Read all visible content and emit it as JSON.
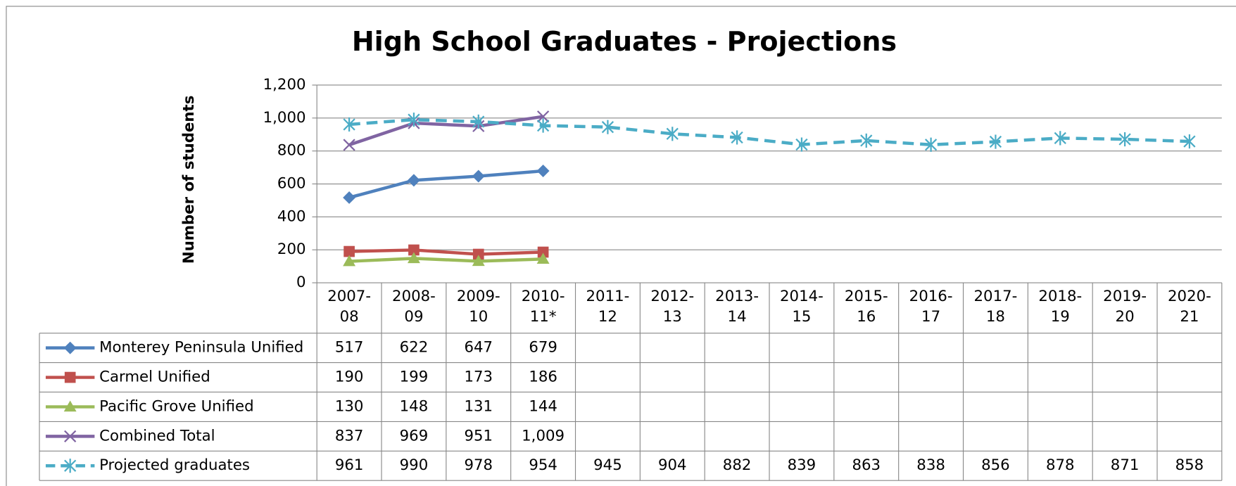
{
  "chart_data": {
    "type": "line",
    "title": "High School Graduates - Projections",
    "y_label": "Number of students",
    "categories": [
      "2007-08",
      "2008-09",
      "2009-10",
      "2010-11*",
      "2011-12",
      "2012-13",
      "2013-14",
      "2014-15",
      "2015-16",
      "2016-17",
      "2017-18",
      "2018-19",
      "2019-20",
      "2020-21"
    ],
    "ylim": [
      0,
      1200
    ],
    "yticks": [
      0,
      200,
      400,
      600,
      800,
      {
        "value": 1000,
        "label": "1,000"
      },
      {
        "value": 1200,
        "label": "1,200"
      }
    ],
    "grid": true,
    "legend": "bottom",
    "series": [
      {
        "name": "Monterey Peninsula Unified",
        "color": "#4f81bd",
        "marker": "diamond",
        "dash": false,
        "values": [
          517,
          622,
          647,
          679,
          null,
          null,
          null,
          null,
          null,
          null,
          null,
          null,
          null,
          null
        ]
      },
      {
        "name": "Carmel Unified",
        "color": "#c0504d",
        "marker": "square",
        "dash": false,
        "values": [
          190,
          199,
          173,
          186,
          null,
          null,
          null,
          null,
          null,
          null,
          null,
          null,
          null,
          null
        ]
      },
      {
        "name": "Pacific Grove Unified",
        "color": "#9bbb59",
        "marker": "triangle",
        "dash": false,
        "values": [
          130,
          148,
          131,
          144,
          null,
          null,
          null,
          null,
          null,
          null,
          null,
          null,
          null,
          null
        ]
      },
      {
        "name": "Combined Total",
        "color": "#8064a2",
        "marker": "x",
        "dash": false,
        "values": [
          837,
          969,
          951,
          1009,
          null,
          null,
          null,
          null,
          null,
          null,
          null,
          null,
          null,
          null
        ],
        "value_labels": [
          "837",
          "969",
          "951",
          "1,009",
          null,
          null,
          null,
          null,
          null,
          null,
          null,
          null,
          null,
          null
        ]
      },
      {
        "name": "Projected graduates",
        "color": "#4bacc6",
        "marker": "star",
        "dash": true,
        "values": [
          961,
          990,
          978,
          954,
          945,
          904,
          882,
          839,
          863,
          838,
          856,
          878,
          871,
          858
        ]
      }
    ]
  }
}
